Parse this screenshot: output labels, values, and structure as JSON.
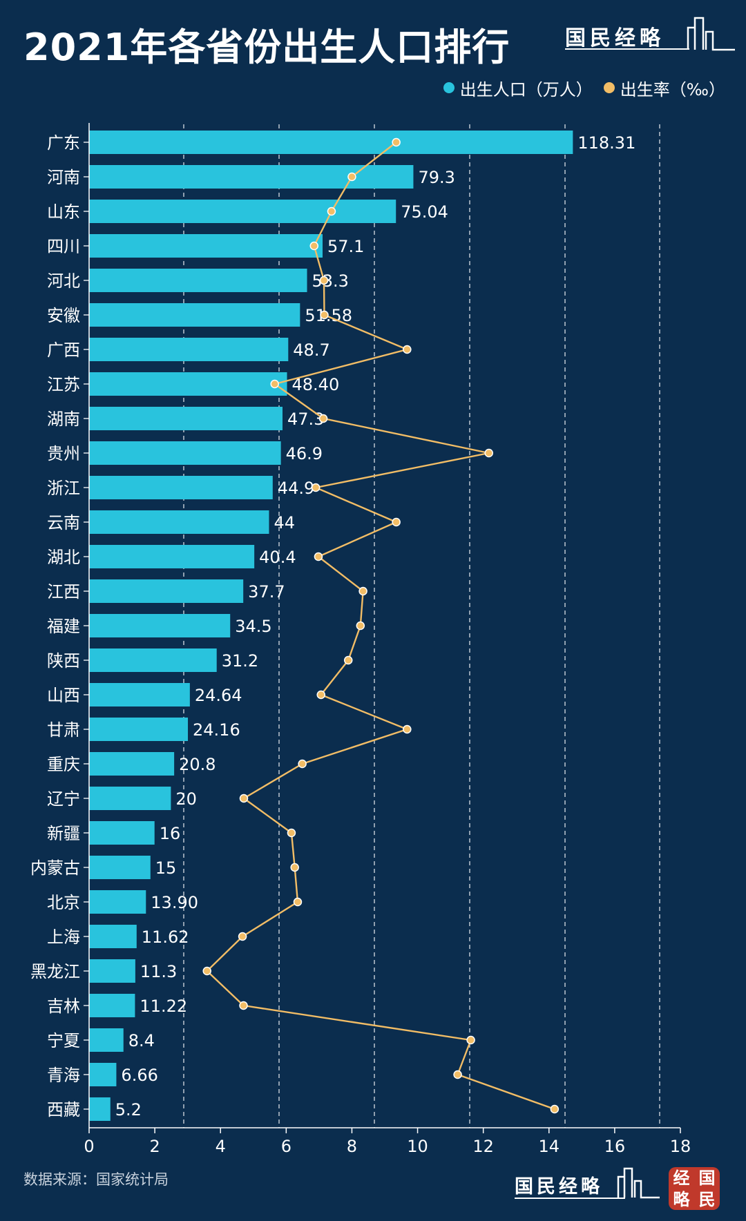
{
  "title": "2021年各省份出生人口排行",
  "brand": "国民经略",
  "seal_chars": [
    "经",
    "国",
    "略",
    "民"
  ],
  "source": "数据来源：国家统计局",
  "legend": [
    {
      "label": "出生人口（万人）",
      "color": "#29c3dd"
    },
    {
      "label": "出生率（‰）",
      "color": "#f2bd66"
    }
  ],
  "colors": {
    "background": "#0b2d4e",
    "bar": "#29c3dd",
    "line": "#f2bd66",
    "grid": "#ffffff"
  },
  "chart_data": {
    "type": "bar",
    "orientation": "horizontal",
    "categories": [
      "广东",
      "河南",
      "山东",
      "四川",
      "河北",
      "安徽",
      "广西",
      "江苏",
      "湖南",
      "贵州",
      "浙江",
      "云南",
      "湖北",
      "江西",
      "福建",
      "陕西",
      "山西",
      "甘肃",
      "重庆",
      "辽宁",
      "新疆",
      "内蒙古",
      "北京",
      "上海",
      "黑龙江",
      "吉林",
      "宁夏",
      "青海",
      "西藏"
    ],
    "series": [
      {
        "name": "出生人口（万人）",
        "type": "bar",
        "values": [
          118.31,
          79.3,
          75.04,
          57.1,
          53.3,
          51.58,
          48.7,
          48.4,
          47.3,
          46.9,
          44.9,
          44,
          40.4,
          37.7,
          34.5,
          31.2,
          24.64,
          24.16,
          20.8,
          20,
          16,
          15,
          13.9,
          11.62,
          11.3,
          11.22,
          8.4,
          6.66,
          5.2
        ],
        "labels": [
          "118.31",
          "79.3",
          "75.04",
          "57.1",
          "53.3",
          "51.58",
          "48.7",
          "48.40",
          "47.3",
          "46.9",
          "44.9",
          "44",
          "40.4",
          "37.7",
          "34.5",
          "31.2",
          "24.64",
          "24.16",
          "20.8",
          "20",
          "16",
          "15",
          "13.90",
          "11.62",
          "11.3",
          "11.22",
          "8.4",
          "6.66",
          "5.2"
        ],
        "xlim": [
          0,
          144.6
        ]
      },
      {
        "name": "出生率（‰）",
        "type": "line",
        "values": [
          9.35,
          8.0,
          7.38,
          6.85,
          7.15,
          7.16,
          9.68,
          5.65,
          7.13,
          12.17,
          6.9,
          9.35,
          6.98,
          8.34,
          8.26,
          7.89,
          7.06,
          9.68,
          6.49,
          4.71,
          6.16,
          6.26,
          6.35,
          4.67,
          3.59,
          4.7,
          11.62,
          11.22,
          14.17
        ],
        "xlim": [
          0,
          18
        ]
      }
    ],
    "xaxis_ticks": [
      "0",
      "2",
      "4",
      "6",
      "8",
      "10",
      "12",
      "14",
      "16",
      "18"
    ],
    "xlim": [
      0,
      18
    ],
    "grid": "vertical-dashed",
    "legend_position": "top-right"
  }
}
